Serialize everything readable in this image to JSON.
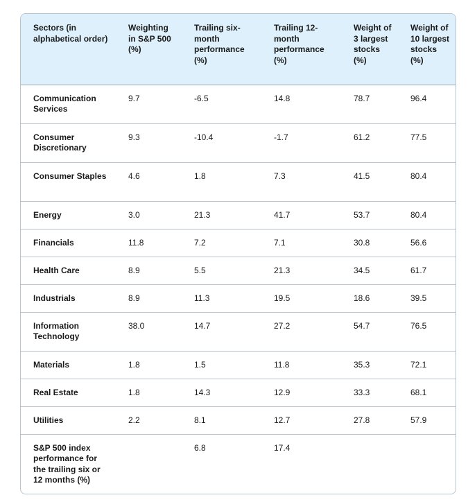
{
  "chart_data": {
    "type": "table",
    "columns": [
      "Sectors (in alphabetical order)",
      "Weighting in S&P 500 (%)",
      "Trailing six-month performance (%)",
      "Trailing 12-month performance (%)",
      "Weight of 3 largest stocks (%)",
      "Weight of 10 largest stocks (%)"
    ],
    "rows": [
      [
        "Communication Services",
        "9.7",
        "-6.5",
        "14.8",
        "78.7",
        "96.4"
      ],
      [
        "Consumer Discretionary",
        "9.3",
        "-10.4",
        "-1.7",
        "61.2",
        "77.5"
      ],
      [
        "Consumer Staples",
        "4.6",
        "1.8",
        "7.3",
        "41.5",
        "80.4"
      ],
      [
        "Energy",
        "3.0",
        "21.3",
        "41.7",
        "53.7",
        "80.4"
      ],
      [
        "Financials",
        "11.8",
        "7.2",
        "7.1",
        "30.8",
        "56.6"
      ],
      [
        "Health Care",
        "8.9",
        "5.5",
        "21.3",
        "34.5",
        "61.7"
      ],
      [
        "Industrials",
        "8.9",
        "11.3",
        "19.5",
        "18.6",
        "39.5"
      ],
      [
        "Information Technology",
        "38.0",
        "14.7",
        "27.2",
        "54.7",
        "76.5"
      ],
      [
        "Materials",
        "1.8",
        "1.5",
        "11.8",
        "35.3",
        "72.1"
      ],
      [
        "Real Estate",
        "1.8",
        "14.3",
        "12.9",
        "33.3",
        "68.1"
      ],
      [
        "Utilities",
        "2.2",
        "8.1",
        "12.7",
        "27.8",
        "57.9"
      ],
      [
        "S&P 500 index performance for the trailing six or 12 months (%)",
        "",
        "6.8",
        "17.4",
        "",
        ""
      ]
    ]
  },
  "colors": {
    "header_background": "#ddf0fb",
    "border": "#b9c3cd"
  }
}
